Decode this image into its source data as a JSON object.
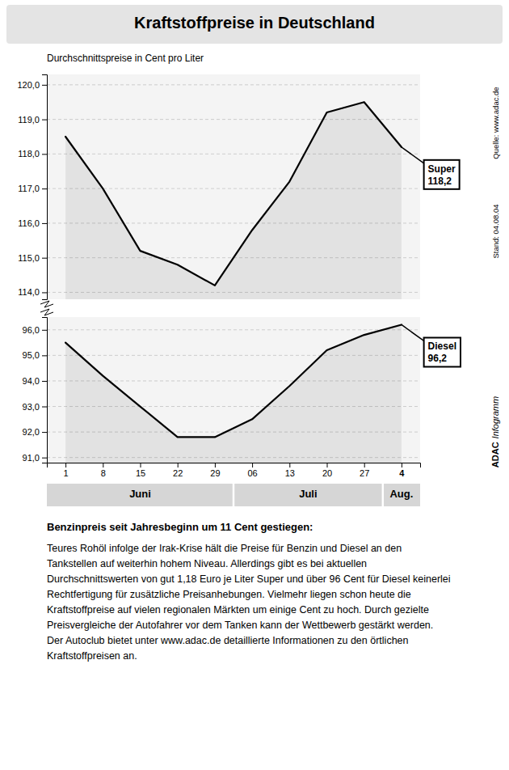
{
  "chart_data": [
    {
      "type": "line",
      "title": "Kraftstoffpreise in Deutschland",
      "subtitle": "Durchschnittspreise in Cent pro Liter",
      "categories": [
        "1",
        "8",
        "15",
        "22",
        "29",
        "06",
        "13",
        "20",
        "27",
        "4"
      ],
      "series": [
        {
          "name": "Super",
          "color": "#000000",
          "values": [
            118.5,
            117.0,
            115.2,
            114.8,
            114.2,
            115.8,
            117.2,
            119.2,
            119.5,
            118.2
          ],
          "value_labels": [
            null,
            null,
            null,
            null,
            null,
            null,
            null,
            null,
            null,
            "118,2"
          ]
        }
      ],
      "ylim": [
        113.8,
        120.3
      ],
      "yticks": [
        {
          "value": 114.0,
          "label": "114,0"
        },
        {
          "value": 115.0,
          "label": "115,0"
        },
        {
          "value": 116.0,
          "label": "116,0"
        },
        {
          "value": 117.0,
          "label": "117,0"
        },
        {
          "value": 118.0,
          "label": "118,0"
        },
        {
          "value": 119.0,
          "label": "119,0"
        },
        {
          "value": 120.0,
          "label": "120,0"
        }
      ],
      "grid": true,
      "line_style": "solid",
      "tick_labels": "y",
      "source": "Quelle: www.adac.de",
      "date_note": "Stand: 04.08.04",
      "brand": "ADAC",
      "brand_suffix": "Infogramm"
    },
    {
      "type": "line",
      "categories": [
        "1",
        "8",
        "15",
        "22",
        "29",
        "06",
        "13",
        "20",
        "27",
        "4"
      ],
      "series": [
        {
          "name": "Diesel",
          "color": "#000000",
          "values": [
            95.5,
            94.2,
            93.0,
            91.8,
            91.8,
            92.5,
            93.8,
            95.2,
            95.8,
            96.2
          ],
          "value_labels": [
            null,
            null,
            null,
            null,
            null,
            null,
            null,
            null,
            null,
            "96,2"
          ]
        }
      ],
      "ylim": [
        90.8,
        96.5
      ],
      "yticks": [
        {
          "value": 91.0,
          "label": "91,0"
        },
        {
          "value": 92.0,
          "label": "92,0"
        },
        {
          "value": 93.0,
          "label": "93,0"
        },
        {
          "value": 94.0,
          "label": "94,0"
        },
        {
          "value": 95.0,
          "label": "95,0"
        },
        {
          "value": 96.0,
          "label": "96,0"
        }
      ],
      "grid": true,
      "line_style": "solid",
      "annotations": [
        {
          "text": "Juni",
          "from": "1",
          "to": "29"
        },
        {
          "text": "Juli",
          "from": "06",
          "to": "27"
        },
        {
          "text": "Aug.",
          "from": "4",
          "to": "4"
        }
      ],
      "body_heading": "Benzinpreis seit Jahresbeginn um 11 Cent gestiegen:",
      "body_text": "Teures Rohöl infolge der Irak-Krise hält die Preise für Benzin und Diesel an den Tankstellen auf weiterhin hohem Niveau. Allerdings gibt es bei aktuellen Durchschnittswerten von gut 1,18 Euro je Liter Super und über 96 Cent für Diesel keinerlei Rechtfertigung für zusätzliche Preisanhebungen. Vielmehr liegen schon heute die Kraftstoffpreise auf vielen regionalen Märkten um einige Cent zu hoch. Durch gezielte Preisvergleiche der Autofahrer vor dem Tanken kann der Wettbewerb gestärkt werden. Der Autoclub bietet unter www.adac.de detaillierte Informationen zu den örtlichen Kraftstoffpreisen an."
    }
  ]
}
